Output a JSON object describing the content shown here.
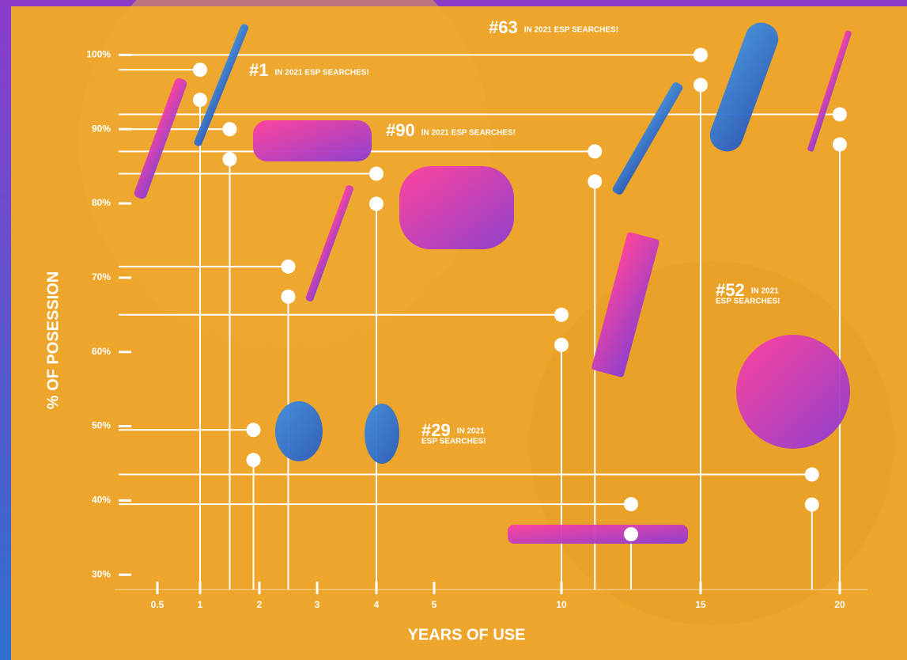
{
  "chart_data": {
    "type": "scatter",
    "x_title": "YEARS OF USE",
    "y_title": "% OF POSESSION",
    "x": [
      1,
      1.5,
      4,
      2.5,
      10,
      1.9,
      12.5,
      15,
      11.2,
      20,
      19
    ],
    "values": [
      98,
      90,
      84,
      71.5,
      65,
      49.5,
      39.5,
      100,
      87,
      92,
      43.5
    ],
    "color": "#ffffff",
    "xlim": [
      0,
      21
    ],
    "xticks": [
      0.5,
      1,
      2,
      3,
      4,
      5,
      10,
      15,
      20
    ],
    "ylim": [
      28,
      101
    ],
    "yticks": [
      {
        "value": 100,
        "label": "100%"
      },
      {
        "value": 90,
        "label": "90%"
      },
      {
        "value": 80,
        "label": "80%"
      },
      {
        "value": 70,
        "label": "70%"
      },
      {
        "value": 60,
        "label": "60%"
      },
      {
        "value": 50,
        "label": "50%"
      },
      {
        "value": 40,
        "label": "40%"
      },
      {
        "value": 30,
        "label": "30%"
      }
    ],
    "annotations": [
      {
        "rank": "#63",
        "lines": [
          "IN 2021 ESP SEARCHES!"
        ]
      },
      {
        "rank": "#1",
        "lines": [
          "IN 2021 ESP SEARCHES!"
        ]
      },
      {
        "rank": "#90",
        "lines": [
          "IN 2021 ESP SEARCHES!"
        ]
      },
      {
        "rank": "#52",
        "lines": [
          "IN 2021",
          "ESP SEARCHES!"
        ]
      },
      {
        "rank": "#29",
        "lines": [
          "IN 2021",
          "ESP SEARCHES!"
        ]
      }
    ]
  }
}
